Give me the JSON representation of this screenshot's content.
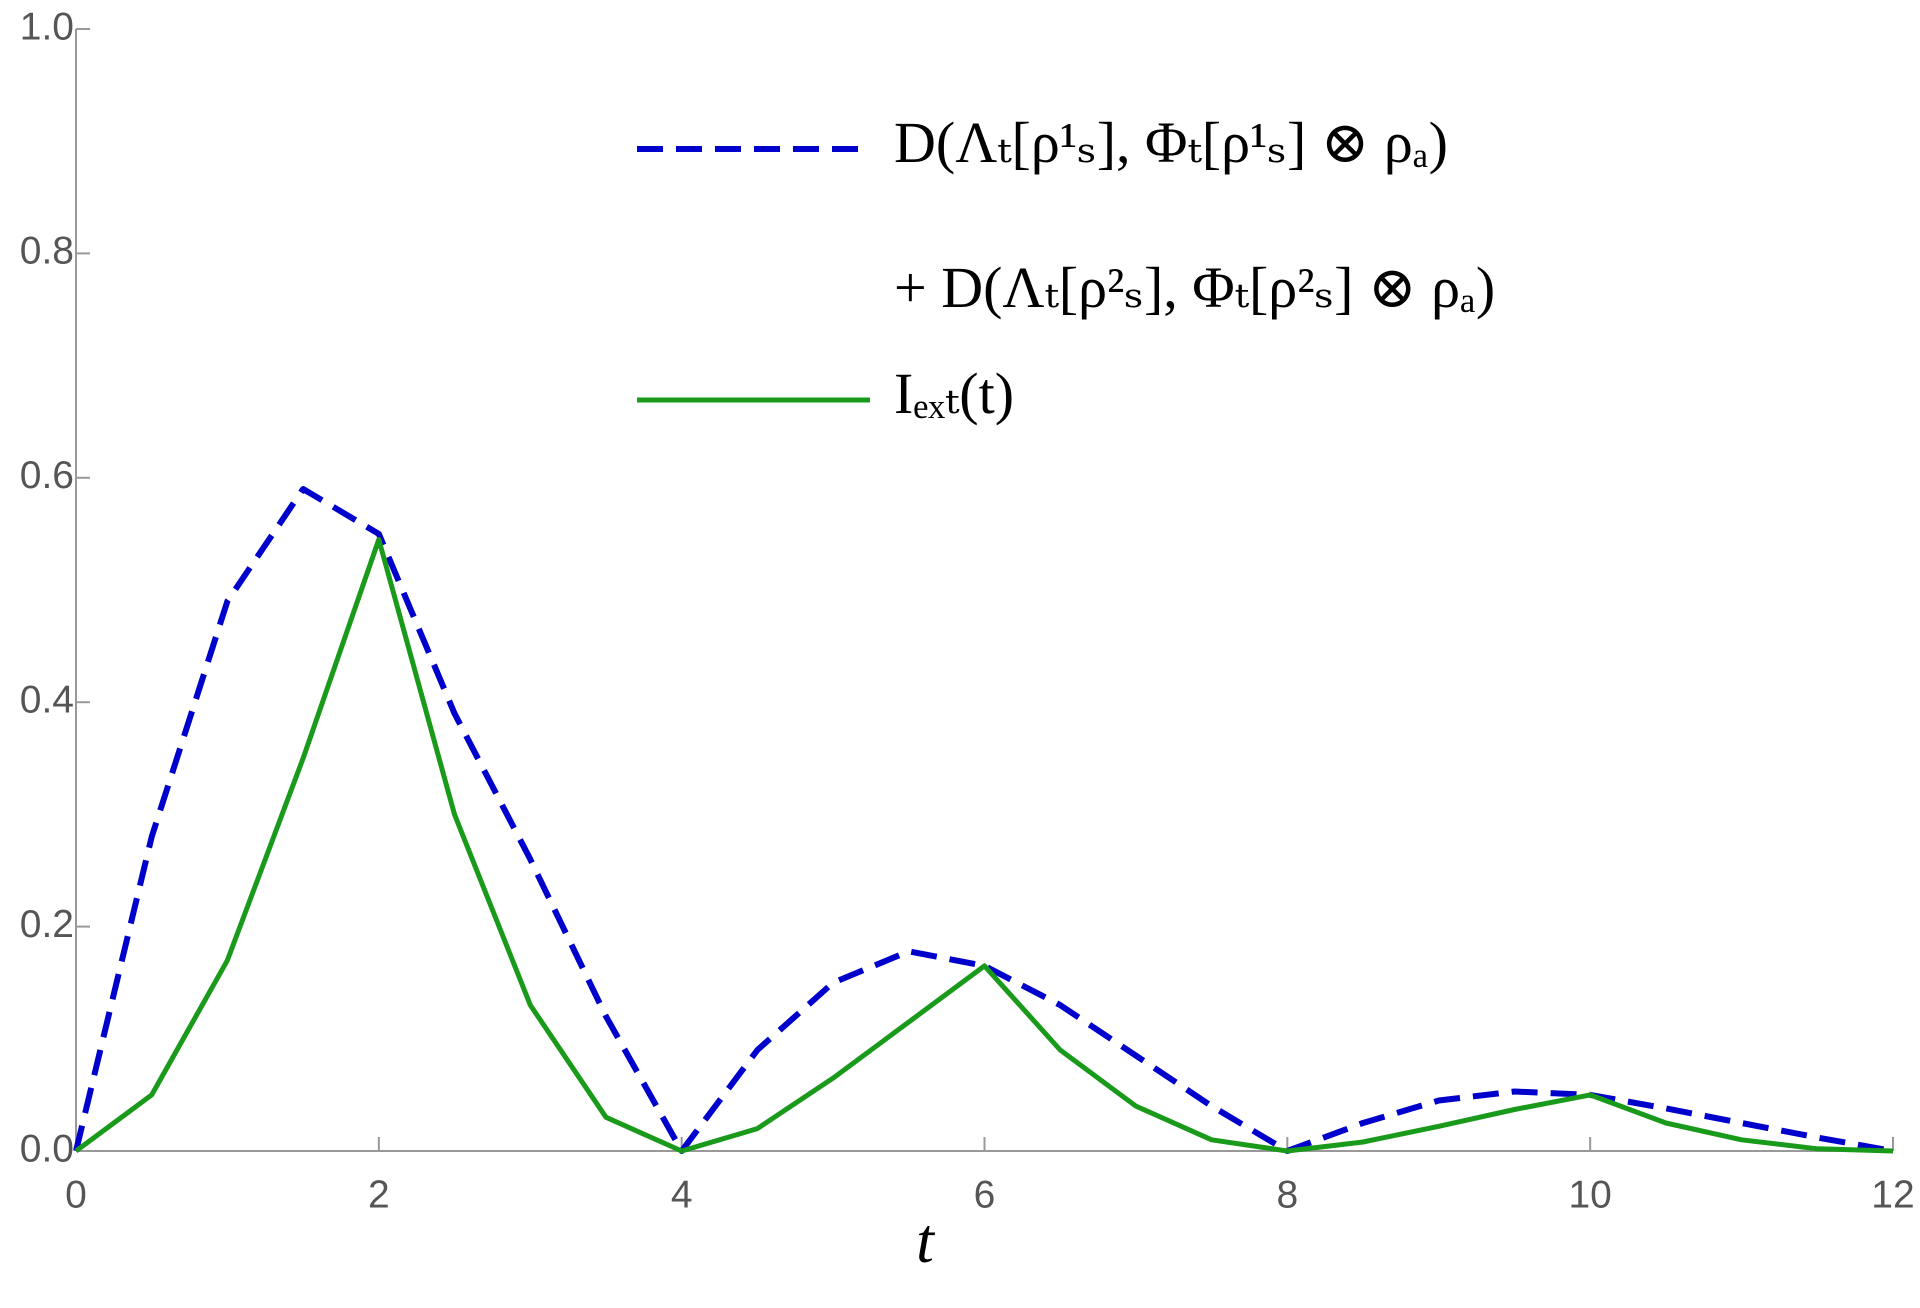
{
  "chart_data": {
    "type": "line",
    "x_label": "t",
    "x": [
      0,
      0.5,
      1,
      1.5,
      2,
      2.5,
      3,
      3.5,
      4,
      4.5,
      5,
      5.5,
      6,
      6.5,
      7,
      7.5,
      8,
      8.5,
      9,
      9.5,
      10,
      10.5,
      11,
      11.5,
      12
    ],
    "series": [
      {
        "name": "D(Λₜ[ρ¹ₛ], Φₜ[ρ¹ₛ] ⊗ ρₐ) + D(Λₜ[ρ²ₛ], Φₜ[ρ²ₛ] ⊗ ρₐ)",
        "color": "#0000cc",
        "dashed": true,
        "values": [
          0,
          0.28,
          0.49,
          0.59,
          0.55,
          0.39,
          0.26,
          0.12,
          0,
          0.09,
          0.15,
          0.178,
          0.165,
          0.13,
          0.085,
          0.04,
          0,
          0.025,
          0.045,
          0.053,
          0.05,
          0.038,
          0.025,
          0.012,
          0
        ]
      },
      {
        "name": "Iₑₓₜ(t)",
        "color": "#1a9a1a",
        "dashed": false,
        "values": [
          0,
          0.05,
          0.17,
          0.35,
          0.545,
          0.3,
          0.13,
          0.03,
          0,
          0.02,
          0.065,
          0.115,
          0.165,
          0.09,
          0.04,
          0.01,
          0,
          0.008,
          0.022,
          0.037,
          0.05,
          0.025,
          0.01,
          0.002,
          0
        ]
      }
    ],
    "xlim": [
      0,
      12
    ],
    "xticks": [
      0,
      2,
      4,
      6,
      8,
      10,
      12
    ],
    "ylim": [
      0,
      1
    ],
    "yticks": [
      {
        "value": 0,
        "label": "0.0"
      },
      {
        "value": 0.2,
        "label": "0.2"
      },
      {
        "value": 0.4,
        "label": "0.4"
      },
      {
        "value": 0.6,
        "label": "0.6"
      },
      {
        "value": 0.8,
        "label": "0.8"
      },
      {
        "value": 1,
        "label": "1.0"
      }
    ],
    "grid": false,
    "legend": "top-right"
  }
}
